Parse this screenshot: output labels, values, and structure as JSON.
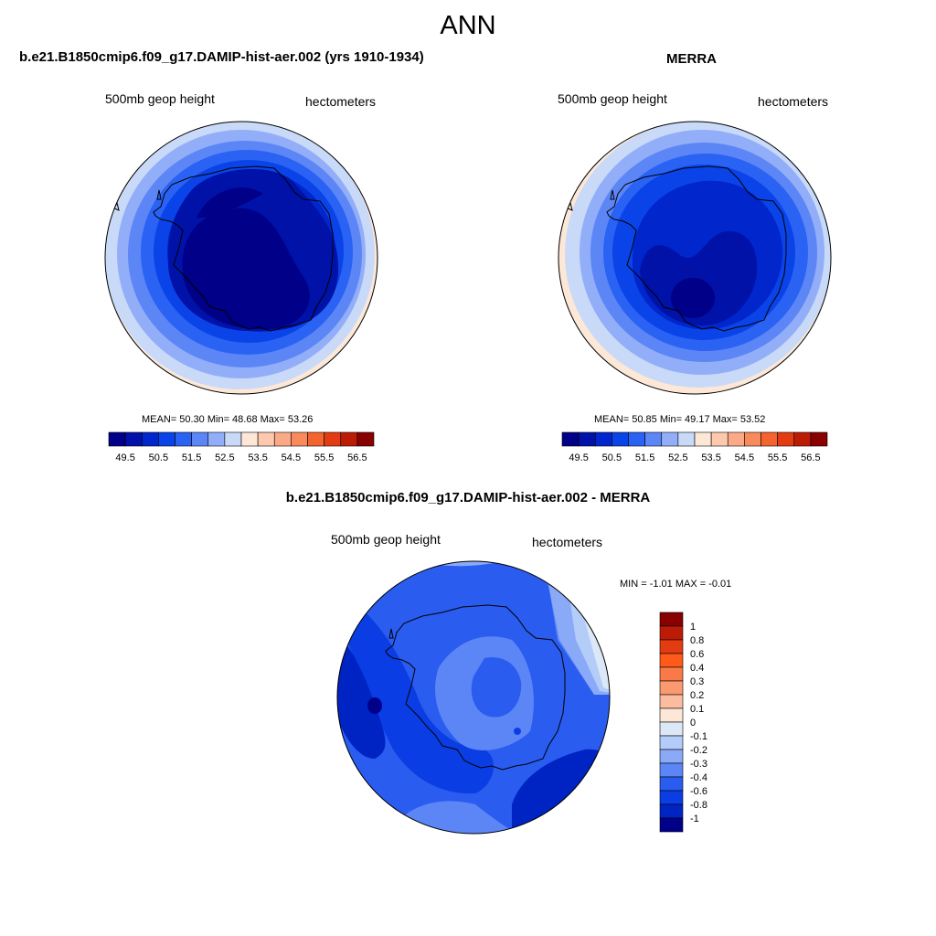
{
  "figure": {
    "title": "ANN"
  },
  "panels": {
    "model": {
      "title": "b.e21.B1850cmip6.f09_g17.DAMIP-hist-aer.002 (yrs 1910-1934)",
      "left_label": "500mb geop height",
      "right_label": "hectometers",
      "stats": "MEAN=  50.30  Min=  48.68  Max=  53.26"
    },
    "obs": {
      "title": "MERRA",
      "left_label": "500mb geop height",
      "right_label": "hectometers",
      "stats": "MEAN=  50.85  Min=  49.17  Max=  53.52"
    },
    "diff": {
      "title": "b.e21.B1850cmip6.f09_g17.DAMIP-hist-aer.002 - MERRA",
      "left_label": "500mb geop height",
      "right_label": "hectometers",
      "stats": "MIN =  -1.01 MAX =  -0.01"
    }
  },
  "chart_data": [
    {
      "type": "heatmap",
      "panel": "model",
      "projection": "south polar stereographic",
      "variable": "500mb geop height",
      "units": "hectometers",
      "mean": 50.3,
      "min": 48.68,
      "max": 53.26,
      "contour_levels": [
        49,
        49.5,
        50,
        50.5,
        51,
        51.5,
        52,
        52.5,
        53,
        53.5,
        54,
        54.5,
        55,
        55.5,
        56,
        56.5
      ],
      "colorbar_ticks": [
        "49.5",
        "50.5",
        "51.5",
        "52.5",
        "53.5",
        "54.5",
        "55.5",
        "56.5"
      ],
      "colors": [
        "#000088",
        "#0012a8",
        "#0026cc",
        "#0a44e8",
        "#2a62f4",
        "#5c86f6",
        "#92aef8",
        "#c8daf8",
        "#fde8d8",
        "#fcc8ae",
        "#fbaa88",
        "#f98a5c",
        "#f4642e",
        "#e43c12",
        "#bc1c06",
        "#880000"
      ]
    },
    {
      "type": "heatmap",
      "panel": "obs",
      "projection": "south polar stereographic",
      "variable": "500mb geop height",
      "units": "hectometers",
      "mean": 50.85,
      "min": 49.17,
      "max": 53.52,
      "contour_levels": [
        49,
        49.5,
        50,
        50.5,
        51,
        51.5,
        52,
        52.5,
        53,
        53.5,
        54,
        54.5,
        55,
        55.5,
        56,
        56.5
      ],
      "colorbar_ticks": [
        "49.5",
        "50.5",
        "51.5",
        "52.5",
        "53.5",
        "54.5",
        "55.5",
        "56.5"
      ],
      "colors": [
        "#000088",
        "#0012a8",
        "#0026cc",
        "#0a44e8",
        "#2a62f4",
        "#5c86f6",
        "#92aef8",
        "#c8daf8",
        "#fde8d8",
        "#fcc8ae",
        "#fbaa88",
        "#f98a5c",
        "#f4642e",
        "#e43c12",
        "#bc1c06",
        "#880000"
      ]
    },
    {
      "type": "heatmap",
      "panel": "diff",
      "projection": "south polar stereographic",
      "variable": "500mb geop height",
      "units": "hectometers",
      "min": -1.01,
      "max": -0.01,
      "colorbar_ticks": [
        "1",
        "0.8",
        "0.6",
        "0.4",
        "0.3",
        "0.2",
        "0.1",
        "0",
        "-0.1",
        "-0.2",
        "-0.3",
        "-0.4",
        "-0.6",
        "-0.8",
        "-1"
      ],
      "colors": [
        "#880000",
        "#bc1c06",
        "#e43c12",
        "#ff5a1a",
        "#f97a48",
        "#fb9a70",
        "#fcbca0",
        "#fde8d8",
        "#dce8f8",
        "#b4ccf8",
        "#8aaaf8",
        "#5c86f6",
        "#2a5cf0",
        "#0a3ee4",
        "#0024c4",
        "#000088"
      ]
    }
  ]
}
